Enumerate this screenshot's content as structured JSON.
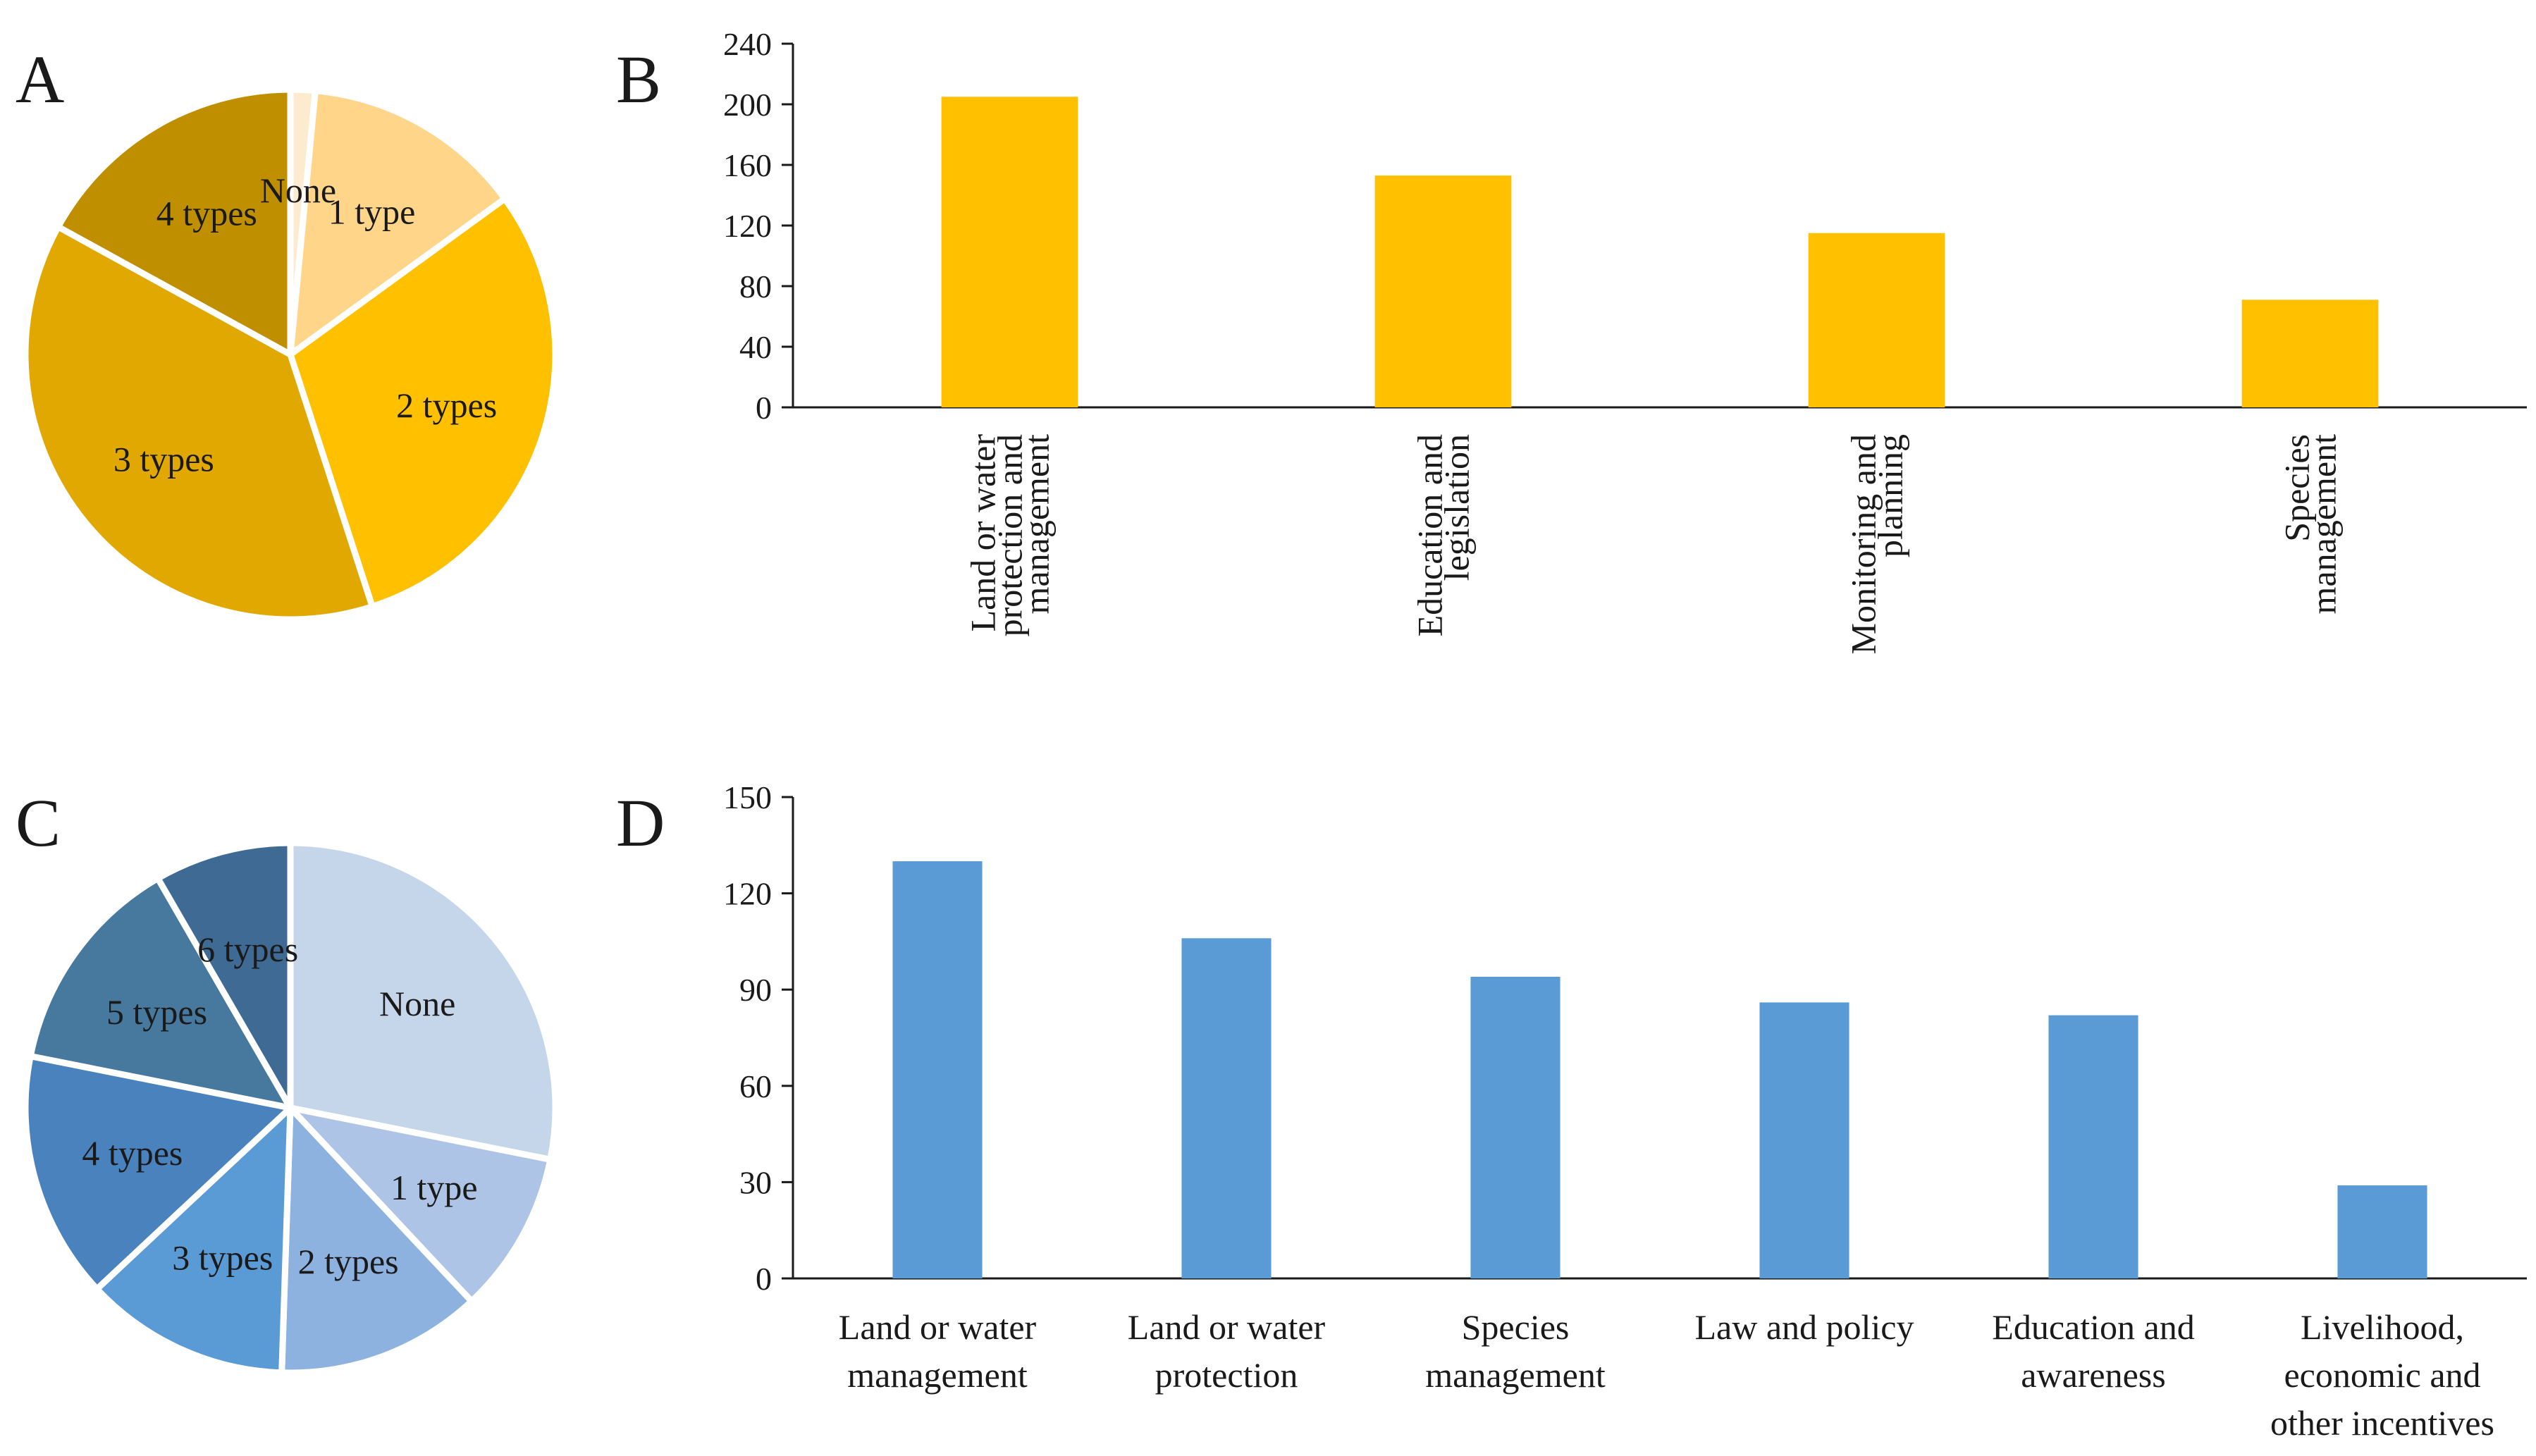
{
  "chart_data": [
    {
      "panel": "A",
      "type": "pie",
      "colors": [
        "#fdebd0",
        "#ffd58a",
        "#ffc000",
        "#e0a800",
        "#bf8f00"
      ],
      "slices": [
        {
          "label": "None",
          "value": 1.5
        },
        {
          "label": "1 type",
          "value": 13.5
        },
        {
          "label": "2 types",
          "value": 30
        },
        {
          "label": "3 types",
          "value": 38
        },
        {
          "label": "4 types",
          "value": 17
        }
      ]
    },
    {
      "panel": "B",
      "type": "bar",
      "color": "#ffc000",
      "categories": [
        [
          "Land or water",
          "protection and",
          "management"
        ],
        [
          "Education and",
          "legislation"
        ],
        [
          "Monitoring and",
          "planning"
        ],
        [
          "Species",
          "management"
        ]
      ],
      "values": [
        205,
        153,
        115,
        71
      ],
      "ylim": [
        0,
        240
      ],
      "yticks": [
        0,
        40,
        80,
        120,
        160,
        200,
        240
      ],
      "xlabel": "",
      "ylabel": ""
    },
    {
      "panel": "C",
      "type": "pie",
      "colors": [
        "#c5d5ea",
        "#aec4e6",
        "#8db2e0",
        "#5b9bd5",
        "#4a82bd",
        "#47799e",
        "#3e6a94"
      ],
      "slices": [
        {
          "label": "None",
          "value": 27
        },
        {
          "label": "1 type",
          "value": 9.5
        },
        {
          "label": "2 types",
          "value": 12
        },
        {
          "label": "3 types",
          "value": 12
        },
        {
          "label": "4 types",
          "value": 14.5
        },
        {
          "label": "5 types",
          "value": 13
        },
        {
          "label": "6 types",
          "value": 8
        }
      ]
    },
    {
      "panel": "D",
      "type": "bar",
      "color": "#5b9bd5",
      "categories": [
        [
          "Land or water",
          "management"
        ],
        [
          "Land or water",
          "protection"
        ],
        [
          "Species",
          "management"
        ],
        [
          "Law and policy"
        ],
        [
          "Education and",
          "awareness"
        ],
        [
          "Livelihood,",
          "economic and",
          "other incentives"
        ]
      ],
      "values": [
        130,
        106,
        94,
        86,
        82,
        29
      ],
      "ylim": [
        0,
        150
      ],
      "yticks": [
        0,
        30,
        60,
        90,
        120,
        150
      ],
      "xlabel": "",
      "ylabel": ""
    }
  ]
}
